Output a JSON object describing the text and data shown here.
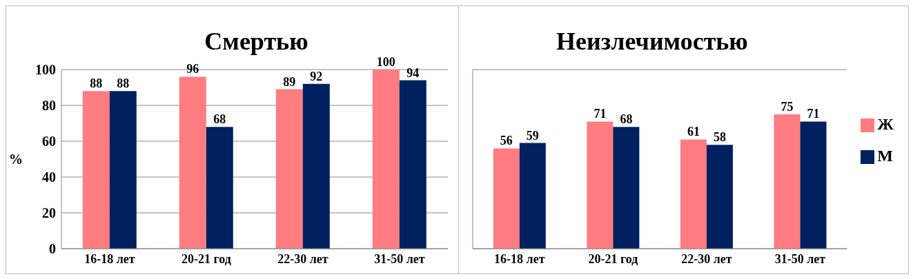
{
  "chart_data": [
    {
      "type": "bar",
      "title": "Смертью",
      "ylabel": "%",
      "categories": [
        "16-18 лет",
        "20-21 год",
        "22-30 лет",
        "31-50 лет"
      ],
      "series": [
        {
          "color": "#ff7c80",
          "values": [
            88,
            96,
            89,
            100
          ]
        },
        {
          "color": "#002060",
          "values": [
            88,
            68,
            92,
            94
          ]
        }
      ],
      "ylim": [
        0,
        100
      ],
      "yticks": [
        0,
        20,
        40,
        60,
        80,
        100
      ],
      "grid": "y",
      "data_labels": true,
      "legend": false
    },
    {
      "type": "bar",
      "title": "Неизлечимостью",
      "categories": [
        "16-18 лет",
        "20-21 год",
        "22-30 лет",
        "31-50 лет"
      ],
      "series": [
        {
          "name": "Ж",
          "color": "#ff7c80",
          "values": [
            56,
            71,
            61,
            75
          ]
        },
        {
          "name": "М",
          "color": "#002060",
          "values": [
            59,
            68,
            58,
            71
          ]
        }
      ],
      "ylim": [
        0,
        100
      ],
      "yticks": [
        0,
        20,
        40,
        60,
        80,
        100
      ],
      "grid": "y",
      "data_labels": true,
      "legend": "right",
      "tick_labels": "x"
    }
  ]
}
